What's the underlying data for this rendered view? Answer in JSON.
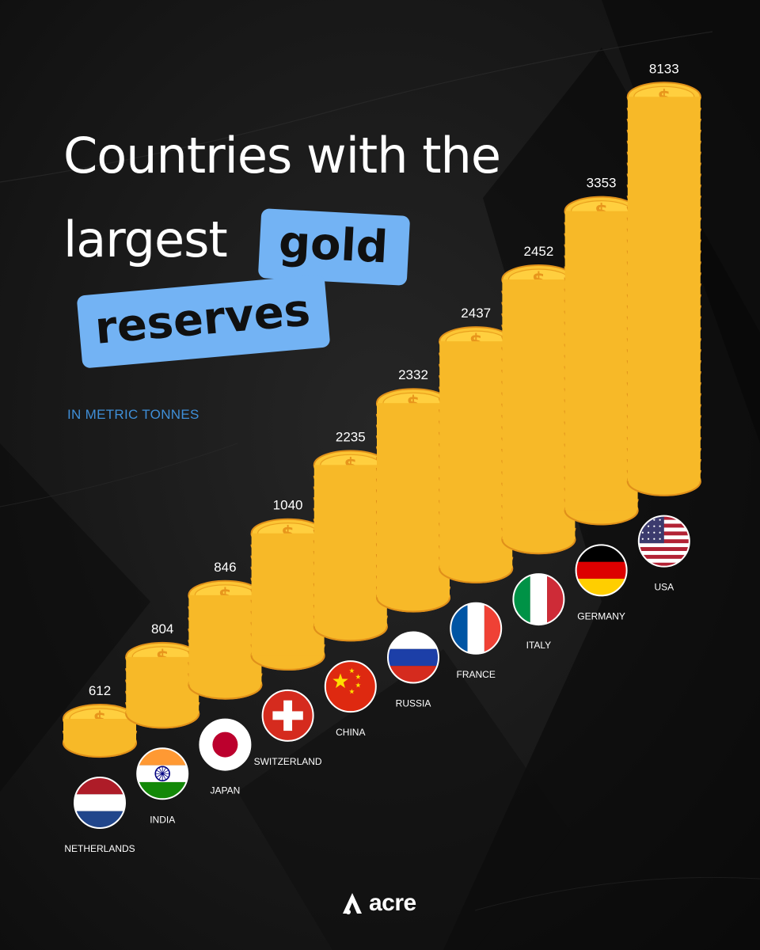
{
  "header": {
    "title_line1": "Countries with the",
    "title_line2": "largest",
    "highlight_word1": "gold",
    "highlight_word2": "reserves",
    "unit": "IN METRIC  TONNES"
  },
  "brand": {
    "name": "acre",
    "icon": "acre-logo-icon"
  },
  "colors": {
    "background": "#151515",
    "accent_blue": "#73b3f4",
    "coin_gold": "#f7b928",
    "coin_edge": "#e0901a",
    "label_white": "#ffffff",
    "unit_blue": "#3f8fd8"
  },
  "chart_data": {
    "type": "bar",
    "title": "Countries with the largest gold reserves",
    "ylabel": "IN METRIC  TONNES",
    "categories": [
      "NETHERLANDS",
      "INDIA",
      "JAPAN",
      "SWITZERLAND",
      "CHINA",
      "RUSSIA",
      "FRANCE",
      "ITALY",
      "GERMANY",
      "USA"
    ],
    "values": [
      612,
      804,
      846,
      1040,
      2235,
      2332,
      2437,
      2452,
      3353,
      8133
    ],
    "value_labels": [
      "612",
      "804",
      "846",
      "1040",
      "2235",
      "2332",
      "2437",
      "2452",
      "3353",
      "8133"
    ],
    "mark_style": "stacked gold coins",
    "flag_icons": [
      "netherlands-flag-icon",
      "india-flag-icon",
      "japan-flag-icon",
      "switzerland-flag-icon",
      "china-flag-icon",
      "russia-flag-icon",
      "france-flag-icon",
      "italy-flag-icon",
      "germany-flag-icon",
      "usa-flag-icon"
    ],
    "legend": "none",
    "grid": false
  }
}
